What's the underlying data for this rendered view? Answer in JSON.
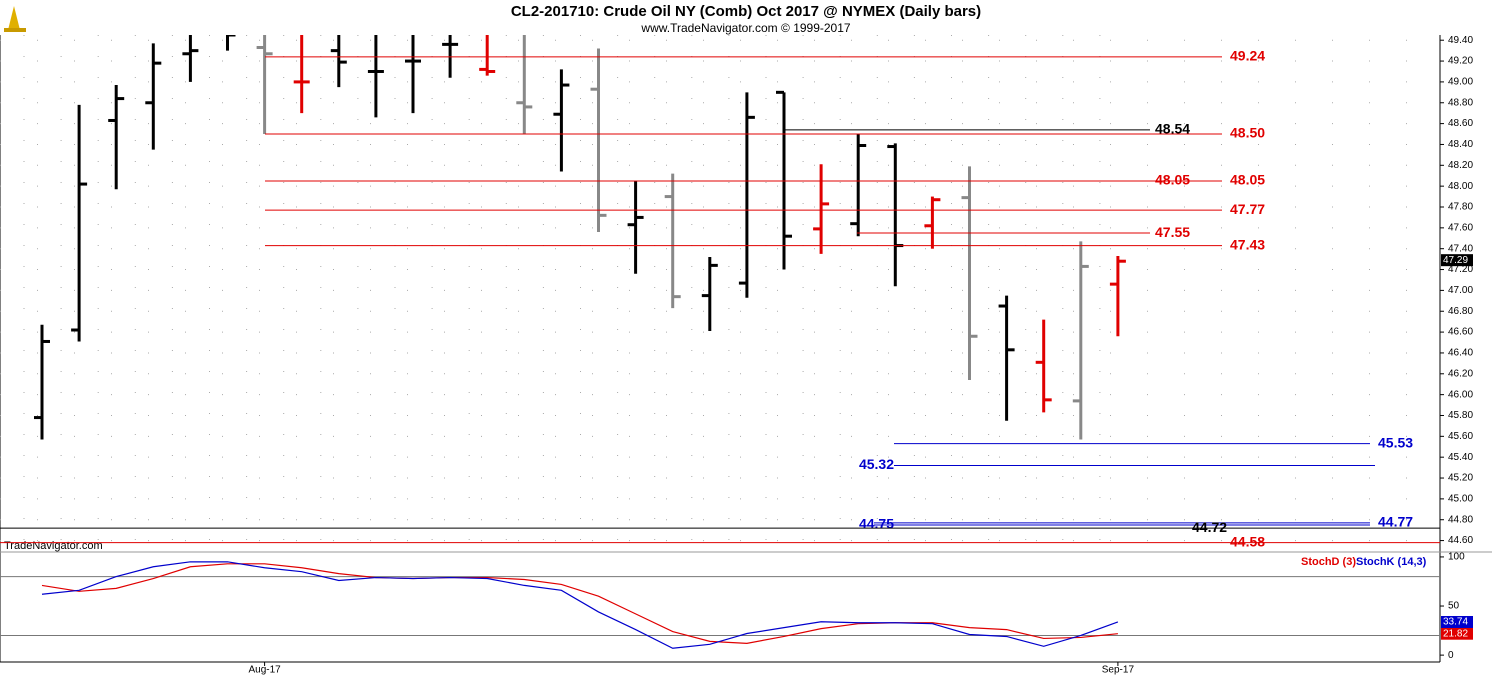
{
  "chart_data": [
    {
      "type": "ohlc",
      "title": "CL2-201710:  Crude Oil NY (Comb) Oct 2017 @ NYMEX  (Daily bars)",
      "subtitle": "www.TradeNavigator.com © 1999-2017",
      "watermark": "TradeNavigator.com",
      "categories": [
        null,
        null,
        null,
        null,
        null,
        null,
        "Aug-17",
        null,
        null,
        null,
        null,
        null,
        null,
        null,
        null,
        null,
        null,
        null,
        null,
        null,
        null,
        null,
        null,
        null,
        null,
        null,
        null,
        null,
        null,
        "Sep-17"
      ],
      "open": [
        45.78,
        46.62,
        48.63,
        48.8,
        49.27,
        49.5,
        49.33,
        49.0,
        49.3,
        49.1,
        49.2,
        49.36,
        49.12,
        48.8,
        48.69,
        48.93,
        47.63,
        47.9,
        46.95,
        47.07,
        48.9,
        47.59,
        47.64,
        48.38,
        47.62,
        47.89,
        46.85,
        46.31,
        45.94,
        47.06
      ],
      "high": [
        46.67,
        48.78,
        48.97,
        49.37,
        49.5,
        49.6,
        49.6,
        49.6,
        49.6,
        49.6,
        49.6,
        49.6,
        49.6,
        49.6,
        49.12,
        49.32,
        48.05,
        48.12,
        47.32,
        48.9,
        48.9,
        48.21,
        48.5,
        48.41,
        47.9,
        48.19,
        46.95,
        46.72,
        47.47,
        47.33
      ],
      "low": [
        45.57,
        46.51,
        47.97,
        48.35,
        49.0,
        49.3,
        48.5,
        48.7,
        48.95,
        48.66,
        48.7,
        49.04,
        49.06,
        48.5,
        48.14,
        47.56,
        47.16,
        46.83,
        46.61,
        46.93,
        47.2,
        47.35,
        47.52,
        47.04,
        47.4,
        46.14,
        45.75,
        45.83,
        45.57,
        46.56
      ],
      "close": [
        46.51,
        48.02,
        48.84,
        49.18,
        49.3,
        49.45,
        49.27,
        49.0,
        49.19,
        49.1,
        49.2,
        49.36,
        49.1,
        48.76,
        48.97,
        47.72,
        47.7,
        46.94,
        47.24,
        48.66,
        47.52,
        47.83,
        48.39,
        47.43,
        47.87,
        46.56,
        46.43,
        45.95,
        47.23,
        47.28
      ],
      "colors": [
        "#000",
        "#000",
        "#000",
        "#000",
        "#000",
        "#000",
        "#888",
        "#e00000",
        "#000",
        "#000",
        "#000",
        "#000",
        "#e00000",
        "#888",
        "#000",
        "#888",
        "#000",
        "#888",
        "#000",
        "#000",
        "#000",
        "#e00000",
        "#000",
        "#000",
        "#e00000",
        "#888",
        "#000",
        "#e00000",
        "#888",
        "#e00000"
      ],
      "ylim": [
        44.5,
        49.45
      ],
      "yticks": [
        {
          "value": 49.4,
          "label": "49.40"
        },
        {
          "value": 49.2,
          "label": "49.20"
        },
        {
          "value": 49.0,
          "label": "49.00"
        },
        {
          "value": 48.8,
          "label": "48.80"
        },
        {
          "value": 48.6,
          "label": "48.60"
        },
        {
          "value": 48.4,
          "label": "48.40"
        },
        {
          "value": 48.2,
          "label": "48.20"
        },
        {
          "value": 48.0,
          "label": "48.00"
        },
        {
          "value": 47.8,
          "label": "47.80"
        },
        {
          "value": 47.6,
          "label": "47.60"
        },
        {
          "value": 47.4,
          "label": "47.40"
        },
        {
          "value": 47.2,
          "label": "47.20"
        },
        {
          "value": 47.0,
          "label": "47.00"
        },
        {
          "value": 46.8,
          "label": "46.80"
        },
        {
          "value": 46.6,
          "label": "46.60"
        },
        {
          "value": 46.4,
          "label": "46.40"
        },
        {
          "value": 46.2,
          "label": "46.20"
        },
        {
          "value": 46.0,
          "label": "46.00"
        },
        {
          "value": 45.8,
          "label": "45.80"
        },
        {
          "value": 45.6,
          "label": "45.60"
        },
        {
          "value": 45.4,
          "label": "45.40"
        },
        {
          "value": 45.2,
          "label": "45.20"
        },
        {
          "value": 45.0,
          "label": "45.00"
        },
        {
          "value": 44.8,
          "label": "44.80"
        },
        {
          "value": 44.6,
          "label": "44.60"
        }
      ],
      "last_price": 47.29,
      "levels": [
        {
          "value": 49.24,
          "label": "49.24",
          "color": "#e00000"
        },
        {
          "value": 48.54,
          "label": "48.54",
          "color": "#000000"
        },
        {
          "value": 48.5,
          "label": "48.50",
          "color": "#e00000"
        },
        {
          "value": 48.05,
          "label": "48.05",
          "color": "#e00000"
        },
        {
          "value": 47.77,
          "label": "47.77",
          "color": "#e00000"
        },
        {
          "value": 47.55,
          "label": "47.55",
          "color": "#e00000"
        },
        {
          "value": 47.43,
          "label": "47.43",
          "color": "#e00000"
        },
        {
          "value": 45.53,
          "label": "45.53",
          "color": "#0000cc"
        },
        {
          "value": 45.32,
          "label": "45.32",
          "color": "#0000cc"
        },
        {
          "value": 44.77,
          "label": "44.77",
          "color": "#0000cc"
        },
        {
          "value": 44.75,
          "label": "44.75",
          "color": "#0000cc"
        },
        {
          "value": 44.72,
          "label": "44.72",
          "color": "#000000"
        },
        {
          "value": 44.58,
          "label": "44.58",
          "color": "#e00000"
        }
      ],
      "grid": true
    },
    {
      "type": "line",
      "series": [
        {
          "name": "StochD (3)",
          "color": "#e00000",
          "values": [
            71,
            65,
            68,
            78,
            90,
            93,
            93,
            89,
            83,
            79,
            78,
            79,
            79,
            77,
            72,
            60,
            42,
            24,
            14,
            12,
            19,
            27,
            32,
            33,
            33,
            28,
            26,
            17,
            18,
            21.82
          ]
        },
        {
          "name": "StochK (14,3)",
          "color": "#0000cc",
          "values": [
            62,
            66,
            80,
            90,
            95,
            95,
            89,
            85,
            76,
            79,
            78,
            79,
            78,
            71,
            66,
            44,
            26,
            7,
            11,
            22,
            28,
            34,
            33,
            33,
            32,
            21,
            19,
            9,
            20,
            33.74
          ]
        }
      ],
      "ylim": [
        -7,
        104
      ],
      "yticks": [
        100,
        50,
        0
      ],
      "levels": [
        80,
        20
      ]
    }
  ]
}
